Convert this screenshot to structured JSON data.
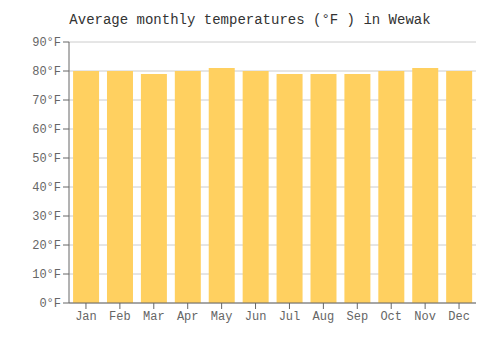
{
  "chart_data": {
    "type": "bar",
    "title": "Average monthly temperatures (°F ) in Wewak",
    "categories": [
      "Jan",
      "Feb",
      "Mar",
      "Apr",
      "May",
      "Jun",
      "Jul",
      "Aug",
      "Sep",
      "Oct",
      "Nov",
      "Dec"
    ],
    "values": [
      80,
      80,
      79,
      80,
      81,
      80,
      79,
      79,
      79,
      80,
      81,
      80
    ],
    "color": "#FFD060",
    "ylim": [
      0,
      90
    ],
    "yticks": [
      {
        "value": 0,
        "label": "0°F"
      },
      {
        "value": 10,
        "label": "10°F"
      },
      {
        "value": 20,
        "label": "20°F"
      },
      {
        "value": 30,
        "label": "30°F"
      },
      {
        "value": 40,
        "label": "40°F"
      },
      {
        "value": 50,
        "label": "50°F"
      },
      {
        "value": 60,
        "label": "60°F"
      },
      {
        "value": 70,
        "label": "70°F"
      },
      {
        "value": 80,
        "label": "80°F"
      },
      {
        "value": 90,
        "label": "90°F"
      }
    ],
    "grid": true
  }
}
